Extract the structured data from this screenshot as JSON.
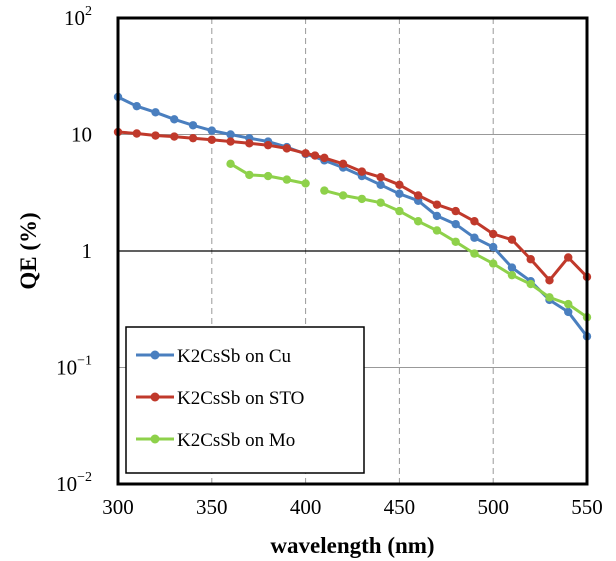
{
  "chart_data": {
    "type": "line",
    "title": "",
    "xlabel": "wavelength (nm)",
    "ylabel": "QE (%)",
    "xlim": [
      300,
      550
    ],
    "ylim": [
      0.01,
      100
    ],
    "y_scale": "log",
    "x_ticks": [
      "300",
      "350",
      "400",
      "450",
      "500",
      "550"
    ],
    "y_ticks": [
      {
        "value": 0.01,
        "base": "10",
        "exp": "−2"
      },
      {
        "value": 0.1,
        "base": "10",
        "exp": "−1"
      },
      {
        "value": 1,
        "base": "1",
        "exp": ""
      },
      {
        "value": 10,
        "base": "10",
        "exp": ""
      },
      {
        "value": 100,
        "base": "10",
        "exp": "2"
      }
    ],
    "grid": {
      "x": "dashed",
      "y": "solid"
    },
    "legend": "bottom-left",
    "series": [
      {
        "name": "K2CsSb on Cu",
        "color": "#4a7fbf",
        "x": [
          300,
          310,
          320,
          330,
          340,
          350,
          360,
          370,
          380,
          390,
          400,
          410,
          420,
          430,
          440,
          450,
          460,
          470,
          480,
          490,
          500,
          510,
          520,
          530,
          540,
          550
        ],
        "y": [
          21,
          17.5,
          15.5,
          13.5,
          12,
          10.8,
          10,
          9.3,
          8.7,
          7.8,
          6.8,
          6.0,
          5.2,
          4.4,
          3.7,
          3.1,
          2.7,
          2.0,
          1.7,
          1.3,
          1.08,
          0.72,
          0.55,
          0.38,
          0.3,
          0.185
        ]
      },
      {
        "name": "K2CsSb on STO",
        "color": "#c0392b",
        "x": [
          300,
          310,
          320,
          330,
          340,
          350,
          360,
          370,
          380,
          390,
          400,
          405,
          410,
          420,
          430,
          440,
          450,
          460,
          470,
          480,
          490,
          500,
          510,
          520,
          530,
          540,
          550
        ],
        "y": [
          10.5,
          10.2,
          9.8,
          9.6,
          9.3,
          9.0,
          8.7,
          8.4,
          8.1,
          7.6,
          6.9,
          6.6,
          6.3,
          5.6,
          4.8,
          4.3,
          3.7,
          3.0,
          2.5,
          2.2,
          1.8,
          1.4,
          1.25,
          0.85,
          0.56,
          0.88,
          0.6
        ]
      },
      {
        "name": "K2CsSb on Mo",
        "color": "#8ed14a",
        "segments": [
          {
            "x": [
              360,
              370,
              380,
              390,
              400
            ],
            "y": [
              5.6,
              4.5,
              4.4,
              4.1,
              3.8
            ]
          },
          {
            "x": [
              410,
              420,
              430,
              440,
              450,
              460,
              470,
              480,
              490,
              500,
              510,
              520,
              530,
              540,
              550
            ],
            "y": [
              3.3,
              3.0,
              2.8,
              2.6,
              2.2,
              1.8,
              1.5,
              1.2,
              0.95,
              0.78,
              0.62,
              0.52,
              0.4,
              0.35,
              0.27
            ]
          }
        ]
      }
    ]
  }
}
